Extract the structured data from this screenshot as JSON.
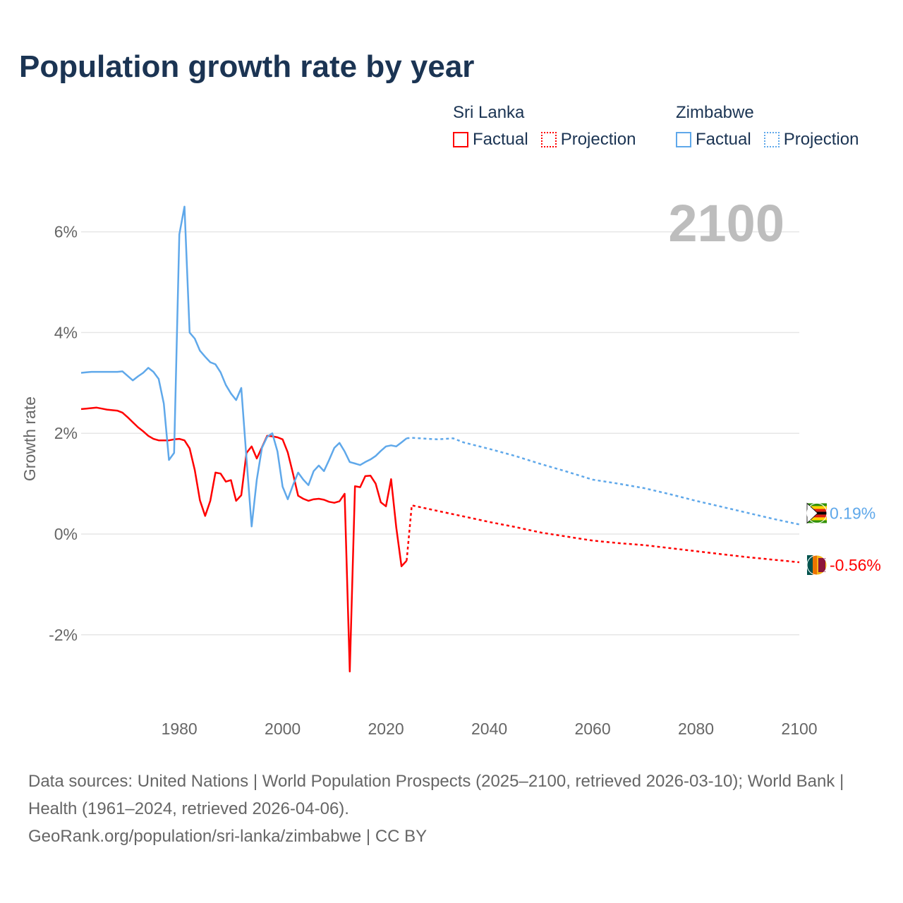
{
  "title": "Population growth rate by year",
  "legend": {
    "groups": [
      {
        "name": "Sri Lanka",
        "factual": "Factual",
        "projection": "Projection",
        "color": "#ff0000"
      },
      {
        "name": "Zimbabwe",
        "factual": "Factual",
        "projection": "Projection",
        "color": "#5fa8ea"
      }
    ]
  },
  "footer": {
    "sources": "Data sources: United Nations | World Population Prospects (2025–2100, retrieved 2026-03-10); World Bank | Health (1961–2024, retrieved 2026-04-06).",
    "credit": "GeoRank.org/population/sri-lanka/zimbabwe | CC BY"
  },
  "chart_data": {
    "type": "line",
    "title": "Population growth rate by year",
    "ylabel": "Growth rate",
    "xlabel": "",
    "year_label": "2100",
    "xlim": [
      1961,
      2100
    ],
    "ylim": [
      -3.3,
      6.7
    ],
    "x_ticks": [
      1980,
      2000,
      2020,
      2040,
      2060,
      2080,
      2100
    ],
    "y_ticks": [
      {
        "v": 6,
        "label": "6%"
      },
      {
        "v": 4,
        "label": "4%"
      },
      {
        "v": 2,
        "label": "2%"
      },
      {
        "v": 0,
        "label": "0%"
      },
      {
        "v": -2,
        "label": "-2%"
      }
    ],
    "grid": true,
    "series": [
      {
        "name": "Sri Lanka",
        "color": "#ff0000",
        "end_label": "-0.56%",
        "factual": {
          "x": [
            1961,
            1962,
            1963,
            1964,
            1965,
            1966,
            1967,
            1968,
            1969,
            1970,
            1971,
            1972,
            1973,
            1974,
            1975,
            1976,
            1977,
            1978,
            1979,
            1980,
            1981,
            1982,
            1983,
            1984,
            1985,
            1986,
            1987,
            1988,
            1989,
            1990,
            1991,
            1992,
            1993,
            1994,
            1995,
            1996,
            1997,
            1998,
            1999,
            2000,
            2001,
            2002,
            2003,
            2004,
            2005,
            2006,
            2007,
            2008,
            2009,
            2010,
            2011,
            2012,
            2013,
            2014,
            2015,
            2016,
            2017,
            2018,
            2019,
            2020,
            2021,
            2022,
            2023,
            2024
          ],
          "y": [
            2.48,
            2.49,
            2.5,
            2.51,
            2.49,
            2.47,
            2.46,
            2.45,
            2.41,
            2.32,
            2.22,
            2.12,
            2.04,
            1.95,
            1.89,
            1.86,
            1.86,
            1.86,
            1.88,
            1.89,
            1.86,
            1.7,
            1.27,
            0.67,
            0.36,
            0.66,
            1.22,
            1.2,
            1.04,
            1.07,
            0.66,
            0.77,
            1.61,
            1.74,
            1.5,
            1.72,
            1.95,
            1.94,
            1.92,
            1.88,
            1.62,
            1.2,
            0.76,
            0.7,
            0.66,
            0.69,
            0.7,
            0.68,
            0.64,
            0.62,
            0.65,
            0.8,
            -2.73,
            0.95,
            0.93,
            1.15,
            1.16,
            1.0,
            0.63,
            0.55,
            1.09,
            0.13,
            -0.64,
            -0.53
          ]
        },
        "projection": {
          "x": [
            2024,
            2025,
            2030,
            2035,
            2040,
            2045,
            2050,
            2055,
            2060,
            2065,
            2070,
            2075,
            2080,
            2085,
            2090,
            2095,
            2100
          ],
          "y": [
            -0.53,
            0.57,
            0.46,
            0.35,
            0.24,
            0.14,
            0.03,
            -0.05,
            -0.13,
            -0.18,
            -0.22,
            -0.28,
            -0.34,
            -0.4,
            -0.46,
            -0.51,
            -0.56
          ]
        }
      },
      {
        "name": "Zimbabwe",
        "color": "#5fa8ea",
        "end_label": "0.19%",
        "factual": {
          "x": [
            1961,
            1962,
            1963,
            1964,
            1965,
            1966,
            1967,
            1968,
            1969,
            1970,
            1971,
            1972,
            1973,
            1974,
            1975,
            1976,
            1977,
            1978,
            1979,
            1980,
            1981,
            1982,
            1983,
            1984,
            1985,
            1986,
            1987,
            1988,
            1989,
            1990,
            1991,
            1992,
            1993,
            1994,
            1995,
            1996,
            1997,
            1998,
            1999,
            2000,
            2001,
            2002,
            2003,
            2004,
            2005,
            2006,
            2007,
            2008,
            2009,
            2010,
            2011,
            2012,
            2013,
            2014,
            2015,
            2016,
            2017,
            2018,
            2019,
            2020,
            2021,
            2022,
            2023,
            2024
          ],
          "y": [
            3.2,
            3.21,
            3.22,
            3.22,
            3.22,
            3.22,
            3.22,
            3.22,
            3.23,
            3.14,
            3.05,
            3.13,
            3.2,
            3.3,
            3.22,
            3.08,
            2.59,
            1.47,
            1.61,
            5.95,
            6.5,
            4.0,
            3.88,
            3.64,
            3.52,
            3.41,
            3.37,
            3.21,
            2.96,
            2.79,
            2.66,
            2.9,
            1.5,
            0.15,
            1.08,
            1.71,
            1.93,
            2.0,
            1.64,
            0.94,
            0.69,
            0.97,
            1.22,
            1.08,
            0.97,
            1.25,
            1.36,
            1.25,
            1.47,
            1.71,
            1.81,
            1.64,
            1.43,
            1.4,
            1.37,
            1.43,
            1.48,
            1.55,
            1.65,
            1.74,
            1.76,
            1.74,
            1.82,
            1.9
          ]
        },
        "projection": {
          "x": [
            2024,
            2025,
            2030,
            2033,
            2035,
            2040,
            2045,
            2050,
            2055,
            2060,
            2065,
            2070,
            2075,
            2080,
            2085,
            2090,
            2095,
            2100
          ],
          "y": [
            1.9,
            1.91,
            1.88,
            1.9,
            1.82,
            1.69,
            1.55,
            1.39,
            1.24,
            1.08,
            1.0,
            0.91,
            0.79,
            0.66,
            0.54,
            0.42,
            0.3,
            0.19
          ]
        }
      }
    ]
  }
}
